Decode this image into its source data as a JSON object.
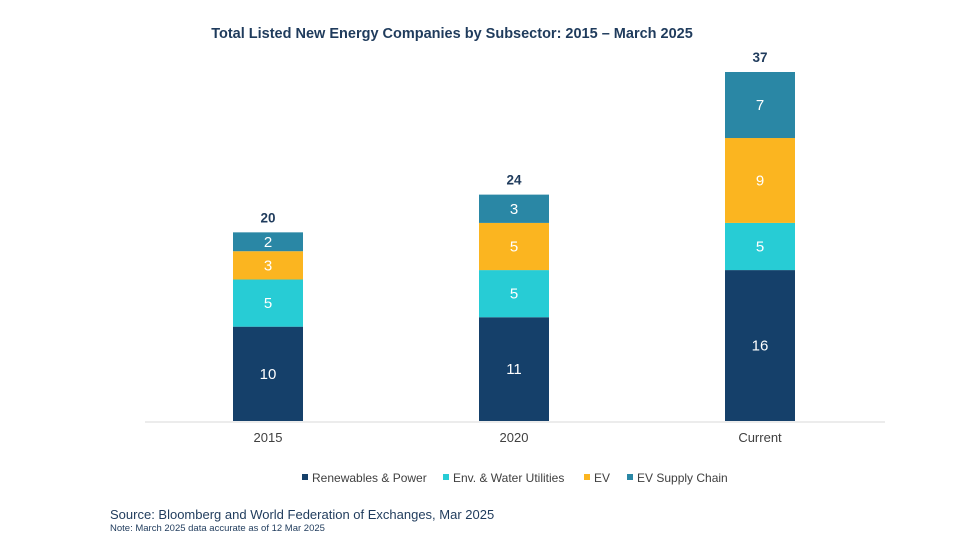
{
  "chart_data": {
    "type": "bar",
    "stacked": true,
    "title": "Total Listed New Energy Companies by  Subsector: 2015 – March 2025",
    "categories": [
      "2015",
      "2020",
      "Current"
    ],
    "series": [
      {
        "name": "Renewables & Power",
        "color": "#15406a",
        "values": [
          10,
          11,
          16
        ]
      },
      {
        "name": "Env. & Water Utilities",
        "color": "#27ccd5",
        "values": [
          5,
          5,
          5
        ]
      },
      {
        "name": "EV",
        "color": "#fbb520",
        "values": [
          3,
          5,
          9
        ]
      },
      {
        "name": "EV Supply Chain",
        "color": "#2a87a5",
        "values": [
          2,
          3,
          7
        ]
      }
    ],
    "totals": [
      "20",
      "24",
      "37"
    ],
    "ylim": [
      0,
      37
    ],
    "xlabel": "",
    "ylabel": "",
    "grid": false,
    "legend_position": "bottom"
  },
  "source": "Source: Bloomberg and World Federation of Exchanges, Mar 2025",
  "note": "Note: March 2025 data accurate as of 12 Mar 2025"
}
